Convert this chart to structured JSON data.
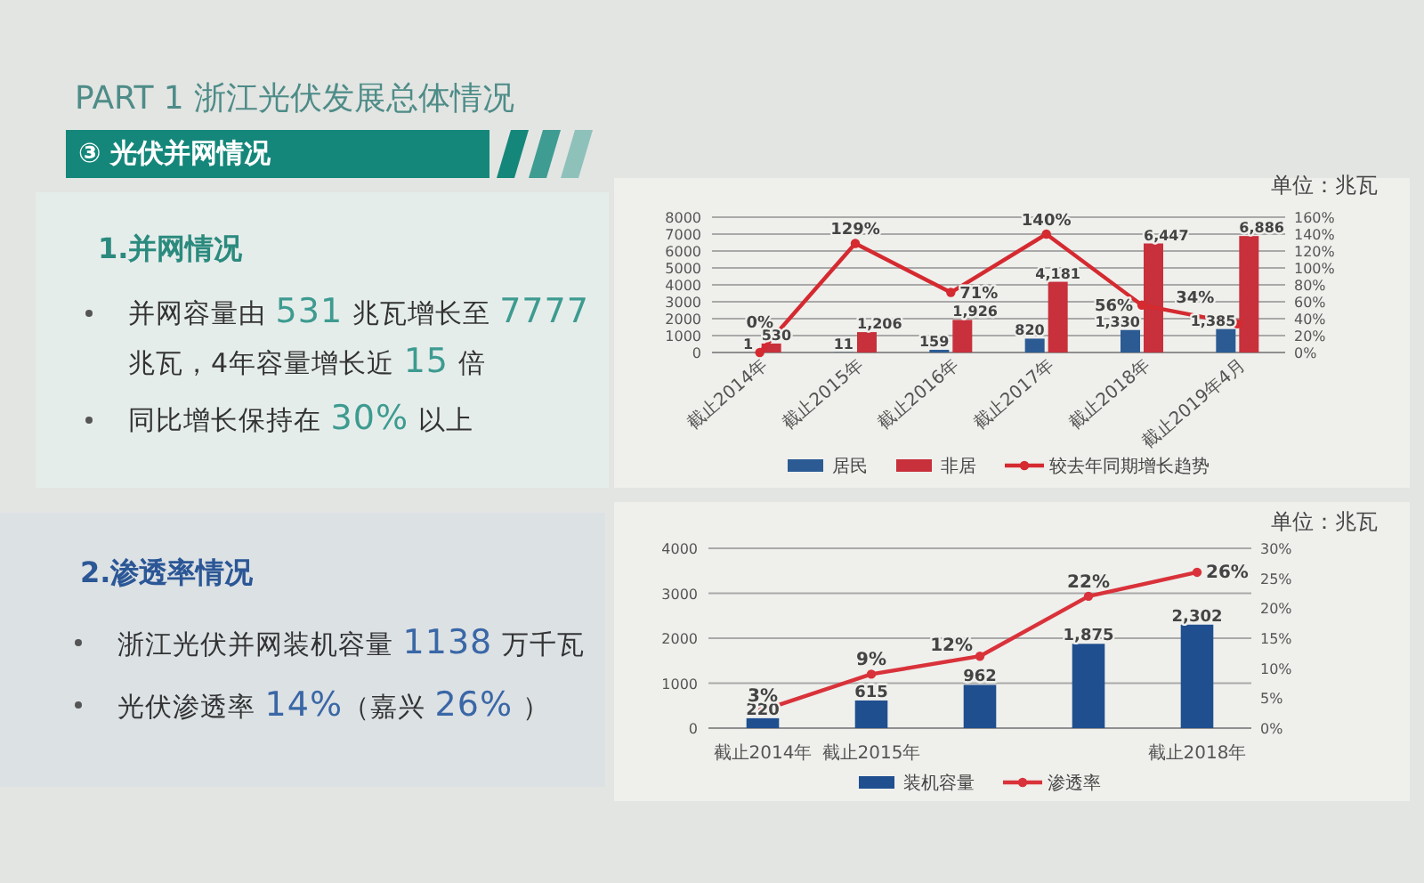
{
  "chart_data": [
    {
      "type": "other",
      "title": "PART 1 浙江光伏发展总体情况",
      "subtitle": "③ 光伏并网情况"
    },
    {
      "type": "other",
      "title": "1.并网情况",
      "annotations": [
        "并网容量由 531 兆瓦增长至 7777 兆瓦，4年容量增长近 15 倍",
        "同比增长保持在 30% 以上"
      ]
    },
    {
      "type": "bar",
      "categories": [
        "截止2014年",
        "截止2015年",
        "截止2016年",
        "截止2017年",
        "截止2018年",
        "截止2019年4月"
      ],
      "series": [
        {
          "name": "居民",
          "color": "#2c5b94",
          "values": [
            1,
            11,
            159,
            820,
            1330,
            1385
          ],
          "value_labels": [
            "1",
            "11",
            "159",
            "820",
            "1,330",
            "1,385"
          ]
        },
        {
          "name": "非居",
          "color": "#c8303b",
          "values": [
            530,
            1206,
            1926,
            4181,
            6447,
            6886
          ],
          "value_labels": [
            "530",
            "1,206",
            "1,926",
            "4,181",
            "6,447",
            "6,886"
          ]
        },
        {
          "name": "较去年同期增长趋势",
          "type": "line",
          "axis": "y2",
          "color": "#d42a30",
          "marker": "circle",
          "values": [
            0,
            129,
            71,
            140,
            56,
            34
          ],
          "value_labels": [
            "0%",
            "129%",
            "71%",
            "140%",
            "56%",
            "34%"
          ]
        }
      ],
      "ylim": [
        0,
        8000
      ],
      "yticks": [
        0,
        1000,
        2000,
        3000,
        4000,
        5000,
        6000,
        7000,
        8000
      ],
      "y2lim": [
        0,
        160
      ],
      "y2ticks": [
        {
          "value": 0,
          "label": "0%"
        },
        {
          "value": 20,
          "label": "20%"
        },
        {
          "value": 40,
          "label": "40%"
        },
        {
          "value": 60,
          "label": "60%"
        },
        {
          "value": 80,
          "label": "80%"
        },
        {
          "value": 100,
          "label": "100%"
        },
        {
          "value": 120,
          "label": "120%"
        },
        {
          "value": 140,
          "label": "140%"
        },
        {
          "value": 160,
          "label": "160%"
        }
      ],
      "grid": "y",
      "legend": "bottom",
      "annotations": [
        "单位：兆瓦"
      ]
    },
    {
      "type": "other",
      "title": "2.渗透率情况",
      "annotations": [
        "浙江光伏并网装机容量 1138 万千瓦",
        "光伏渗透率 14%（嘉兴 26% ）"
      ]
    },
    {
      "type": "bar",
      "categories": [
        "截止2014年",
        "截止2015年",
        null,
        null,
        "截止2018年"
      ],
      "series": [
        {
          "name": "装机容量",
          "color": "#1f4f8f",
          "values": [
            220,
            615,
            962,
            1875,
            2302
          ],
          "value_labels": [
            "220",
            "615",
            "962",
            "1,875",
            "2,302"
          ]
        },
        {
          "name": "渗透率",
          "type": "line",
          "axis": "y2",
          "color": "#d9323a",
          "marker": "circle",
          "values": [
            3,
            9,
            12,
            22,
            26
          ],
          "value_labels": [
            "3%",
            "9%",
            "12%",
            "22%",
            "26%"
          ]
        }
      ],
      "ylim": [
        0,
        4000
      ],
      "yticks": [
        0,
        1000,
        2000,
        3000,
        4000
      ],
      "y2lim": [
        0,
        30
      ],
      "y2ticks": [
        {
          "value": 0,
          "label": "0%"
        },
        {
          "value": 5,
          "label": "5%"
        },
        {
          "value": 10,
          "label": "10%"
        },
        {
          "value": 15,
          "label": "15%"
        },
        {
          "value": 20,
          "label": "20%"
        },
        {
          "value": 25,
          "label": "25%"
        },
        {
          "value": 30,
          "label": "30%"
        }
      ],
      "grid": "y",
      "legend": "bottom",
      "annotations": [
        "单位：兆瓦"
      ]
    }
  ]
}
